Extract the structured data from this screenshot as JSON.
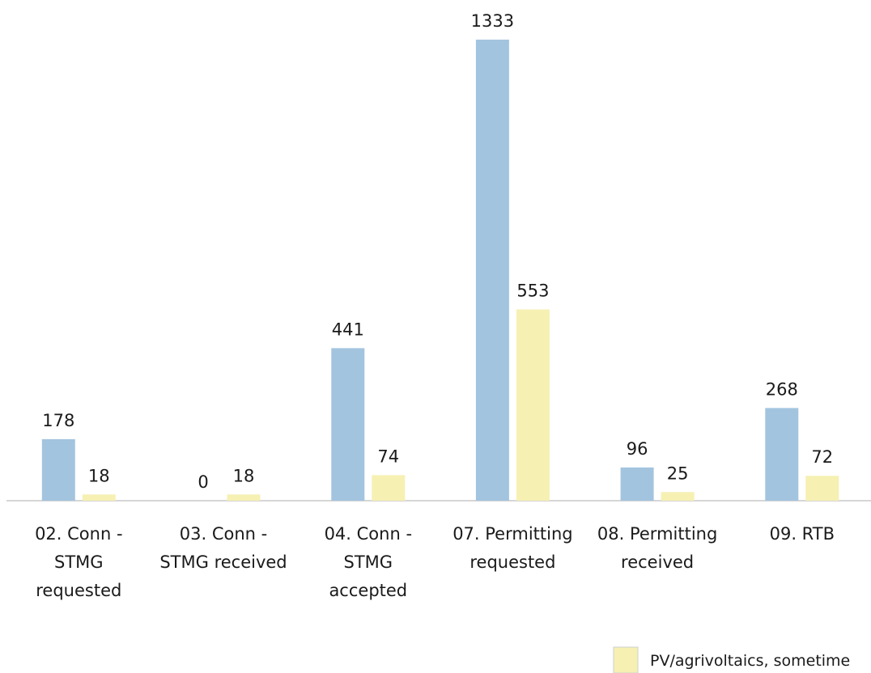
{
  "chart_data": {
    "type": "bar",
    "categories": [
      [
        "02. Conn -",
        "STMG",
        "requested"
      ],
      [
        "03. Conn -",
        "STMG received"
      ],
      [
        "04. Conn -",
        "STMG",
        "accepted"
      ],
      [
        "07. Permitting",
        "requested"
      ],
      [
        "08. Permitting",
        "received"
      ],
      [
        "09. RTB"
      ]
    ],
    "series": [
      {
        "values": [
          178,
          0,
          441,
          1333,
          96,
          268
        ],
        "color": "#a3c4df"
      },
      {
        "name": "PV/agrivoltaics, sometime",
        "values": [
          18,
          18,
          74,
          553,
          25,
          72
        ],
        "color": "#f6f0b3"
      }
    ],
    "ylim": [
      0,
      1333
    ],
    "grid": false,
    "legend_position": "bottom-right"
  }
}
